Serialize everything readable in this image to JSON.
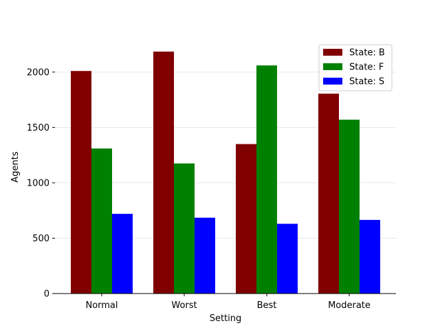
{
  "chart_data": {
    "type": "bar",
    "title": "",
    "xlabel": "Setting",
    "ylabel": "Agents",
    "categories": [
      "Normal",
      "Worst",
      "Best",
      "Moderate"
    ],
    "series": [
      {
        "name": "State: B",
        "values": [
          2010,
          2185,
          1350,
          1805
        ],
        "color": "#800000"
      },
      {
        "name": "State: F",
        "values": [
          1310,
          1175,
          2060,
          1570
        ],
        "color": "#008000"
      },
      {
        "name": "State: S",
        "values": [
          720,
          685,
          630,
          665
        ],
        "color": "#0000ff"
      }
    ],
    "ylim": [
      0,
      2300
    ],
    "yticks": [
      0,
      500,
      1000,
      1500,
      2000
    ],
    "grid": "horizontal",
    "legend_position": "top-right"
  }
}
